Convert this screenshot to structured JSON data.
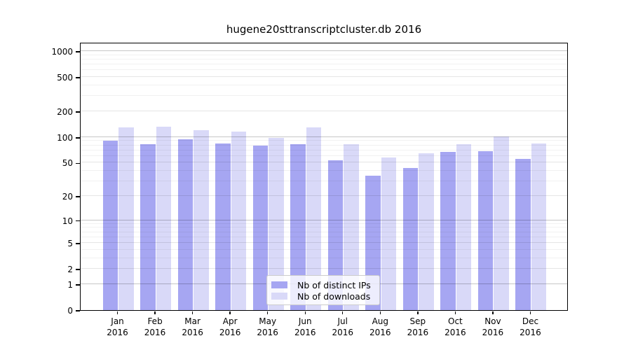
{
  "chart_data": {
    "type": "bar",
    "title": "hugene20sttranscriptcluster.db 2016",
    "categories": [
      "Jan",
      "Feb",
      "Mar",
      "Apr",
      "May",
      "Jun",
      "Jul",
      "Aug",
      "Sep",
      "Oct",
      "Nov",
      "Dec"
    ],
    "year_label": "2016",
    "series": [
      {
        "name": "Nb of distinct IPs",
        "color": "#a6a6f2",
        "values": [
          91,
          82,
          95,
          84,
          79,
          83,
          53,
          35,
          43,
          67,
          69,
          55
        ]
      },
      {
        "name": "Nb of downloads",
        "color": "#d9d9f8",
        "values": [
          129,
          133,
          120,
          115,
          98,
          129,
          83,
          58,
          65,
          82,
          102,
          84
        ]
      }
    ],
    "yscale": "log1p",
    "yticks": [
      0,
      1,
      2,
      5,
      10,
      20,
      50,
      100,
      200,
      500,
      1000
    ],
    "ylim": [
      0,
      1280
    ],
    "grid": "on",
    "legend_position": "bottom-center",
    "axis_color": "#000000",
    "major_gridline_values": [
      1,
      10,
      100,
      1000
    ]
  }
}
